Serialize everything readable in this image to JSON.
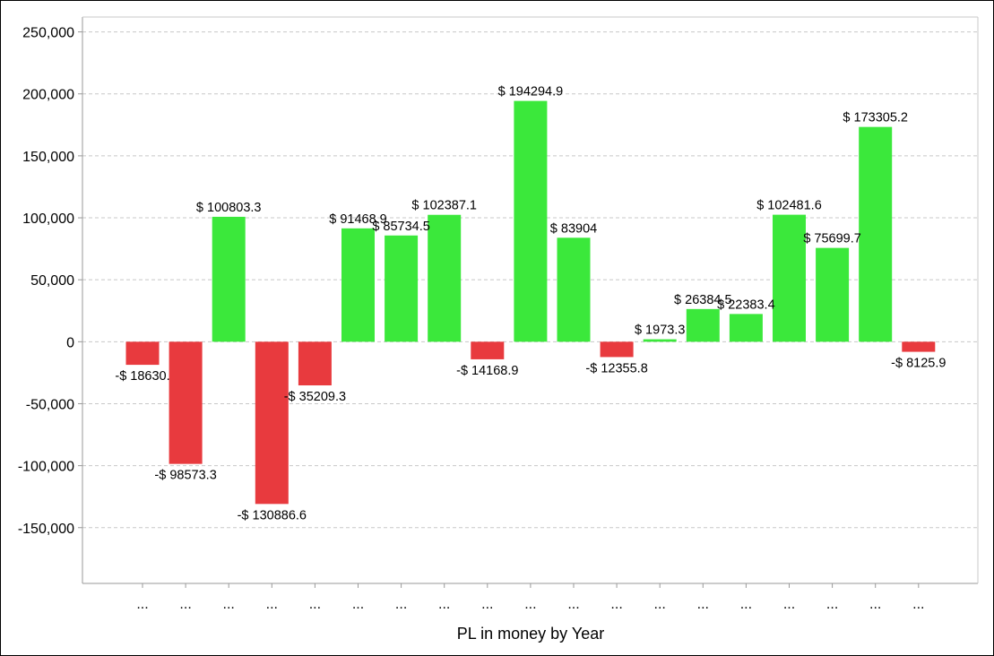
{
  "chart_data": {
    "type": "bar",
    "xlabel": "PL in money by Year",
    "categories": [
      "...",
      "...",
      "...",
      "...",
      "...",
      "...",
      "...",
      "...",
      "...",
      "...",
      "...",
      "...",
      "...",
      "...",
      "...",
      "...",
      "...",
      "...",
      "..."
    ],
    "values": [
      -18630,
      -98573.3,
      100803.3,
      -130886.6,
      -35209.3,
      91468.9,
      85734.5,
      102387.1,
      -14168.9,
      194294.9,
      83904,
      -12355.8,
      1973.3,
      26384.5,
      22383.4,
      102481.6,
      75699.7,
      173305.2,
      -8125.9
    ],
    "data_labels": [
      "-$ 18630.",
      "-$ 98573.3",
      "$ 100803.3",
      "-$ 130886.6",
      "-$ 35209.3",
      "$ 91468.9",
      "$ 85734.5",
      "$ 102387.1",
      "-$ 14168.9",
      "$ 194294.9",
      "$ 83904",
      "-$ 12355.8",
      "$ 1973.3",
      "$ 26384.5",
      "$ 22383.4",
      "$ 102481.6",
      "$ 75699.7",
      "$ 173305.2",
      "-$ 8125.9"
    ],
    "y_ticks": [
      250000,
      200000,
      150000,
      100000,
      50000,
      0,
      -50000,
      -100000,
      -150000
    ],
    "y_tick_labels": [
      "250,000",
      "200,000",
      "150,000",
      "100,000",
      "50,000",
      "0",
      "-50,000",
      "-100,000",
      "-150,000"
    ],
    "ylim": [
      -195000,
      262000
    ],
    "grid": true,
    "colors": {
      "positive": "#3be83b",
      "negative": "#e83a3e",
      "grid": "#c8c8c8",
      "axis": "#999999"
    }
  }
}
